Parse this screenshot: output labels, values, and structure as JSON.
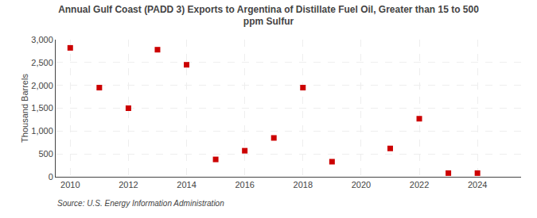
{
  "chart_data": {
    "type": "scatter",
    "title": "Annual Gulf Coast (PADD 3) Exports to Argentina of Distillate Fuel Oil, Greater than 15 to 500\nppm Sulfur",
    "ylabel": "Thousand Barrels",
    "source": "Source: U.S. Energy Information Administration",
    "x": [
      2010,
      2011,
      2012,
      2013,
      2014,
      2015,
      2016,
      2017,
      2018,
      2019,
      2021,
      2022,
      2023,
      2024
    ],
    "values": [
      2820,
      1950,
      1500,
      2780,
      2450,
      380,
      570,
      850,
      1950,
      330,
      620,
      1270,
      80,
      80
    ],
    "color": "#cc0000",
    "marker": "square",
    "xlim": [
      2009.5,
      2025.5
    ],
    "xticks": [
      2010,
      2012,
      2014,
      2016,
      2018,
      2020,
      2022,
      2024
    ],
    "ylim": [
      0,
      3000
    ],
    "yticks": [
      0,
      500,
      {
        "value": 1000,
        "label": "1,000"
      },
      {
        "value": 1500,
        "label": "1,500"
      },
      {
        "value": 2000,
        "label": "2,000"
      },
      {
        "value": 2500,
        "label": "2,500"
      },
      {
        "value": 3000,
        "label": "3,000"
      }
    ],
    "grid": true
  }
}
